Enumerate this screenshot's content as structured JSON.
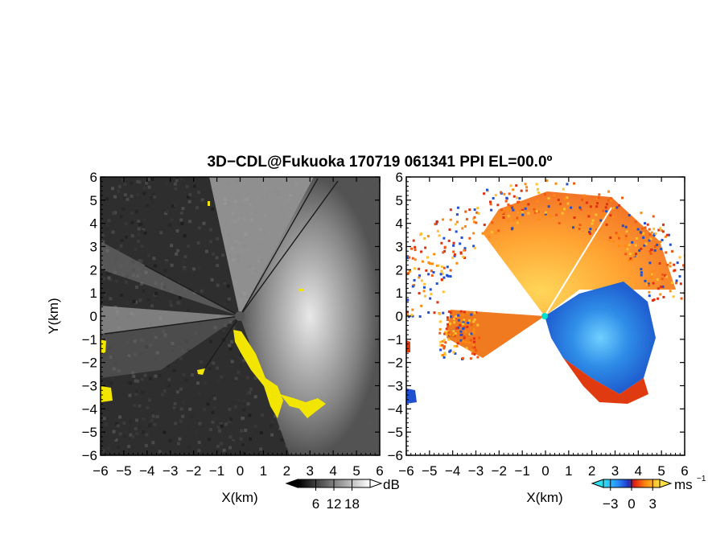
{
  "title": "3D−CDL@Fukuoka 170719 061341 PPI EL=00.0º",
  "chart_data": [
    {
      "type": "heatmap",
      "name": "reflectivity",
      "xlabel": "X(km)",
      "ylabel": "Y(km)",
      "xlim": [
        -6,
        6
      ],
      "ylim": [
        -6,
        6
      ],
      "xticks": [
        "−6",
        "−5",
        "−4",
        "−3",
        "−2",
        "−1",
        "0",
        "1",
        "2",
        "3",
        "4",
        "5",
        "6"
      ],
      "yticks": [
        "−6",
        "−5",
        "−4",
        "−3",
        "−2",
        "−1",
        "0",
        "1",
        "2",
        "3",
        "4",
        "5",
        "6"
      ],
      "colorbar": {
        "ticks": [
          "6",
          "12",
          "18"
        ],
        "values": [
          6,
          12,
          18
        ],
        "range": [
          0,
          24
        ],
        "unit": "dB"
      },
      "colors": {
        "background": "#2e2e2e",
        "clutter": "#f2e600",
        "center": "#555555"
      }
    },
    {
      "type": "heatmap",
      "name": "velocity",
      "xlabel": "X(km)",
      "ylabel": "",
      "xlim": [
        -6,
        6
      ],
      "ylim": [
        -6,
        6
      ],
      "xticks": [
        "−6",
        "−5",
        "−4",
        "−3",
        "−2",
        "−1",
        "0",
        "1",
        "2",
        "3",
        "4",
        "5",
        "6"
      ],
      "colorbar": {
        "ticks": [
          "−3",
          "0",
          "3"
        ],
        "values": [
          -3,
          0,
          3
        ],
        "range": [
          -4,
          4
        ],
        "unit": "ms",
        "unit_sup": "−1"
      },
      "colors": {
        "background": "#ffffff",
        "approaching": "#2b7fe0",
        "receding": "#f06a10",
        "center": "#00e0d0"
      }
    }
  ]
}
